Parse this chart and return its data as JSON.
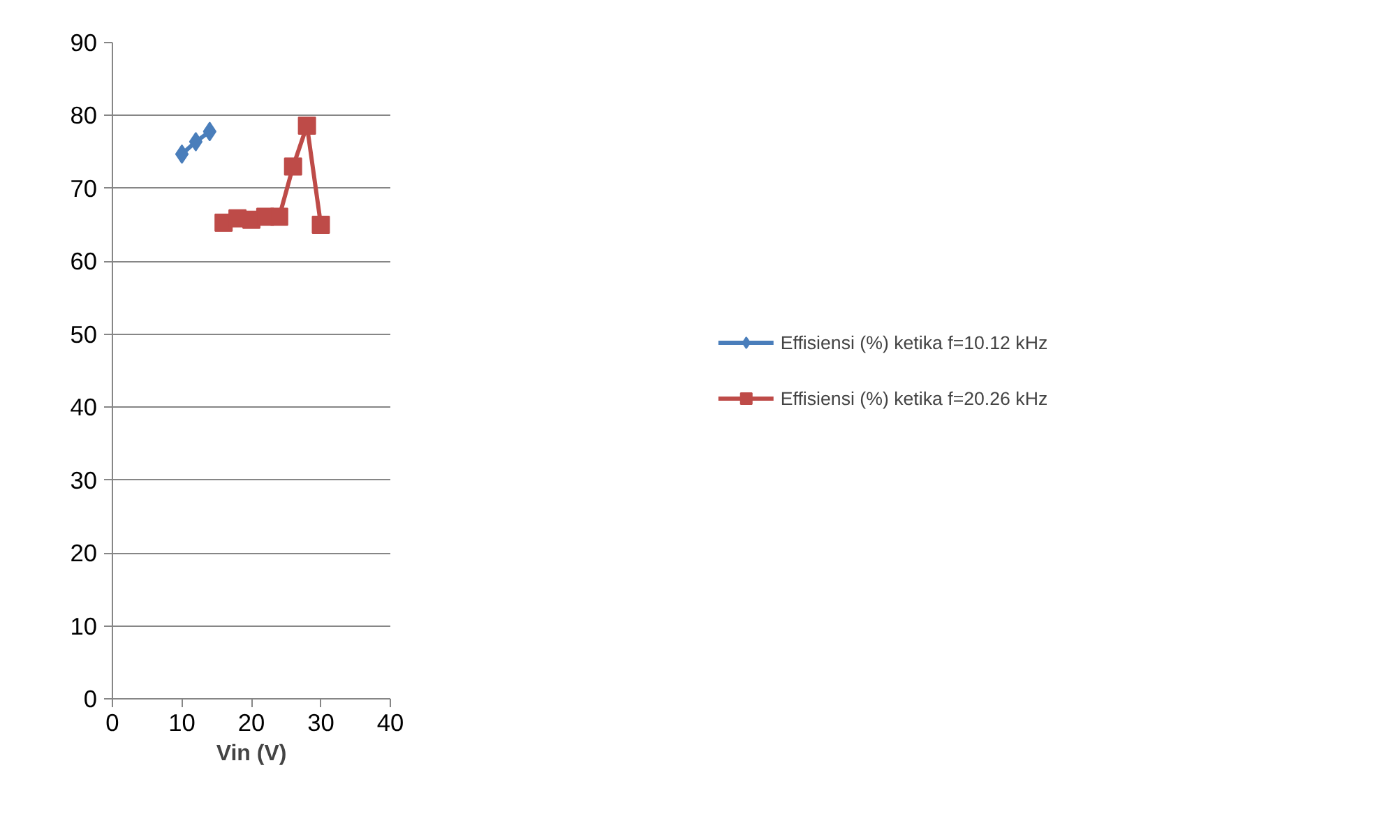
{
  "chart_data": {
    "type": "line",
    "xlabel": "Vin (V)",
    "series": [
      {
        "name": "Effisiensi (%) ketika f=10.12 kHz",
        "color": "#4a7ebb",
        "marker": "diamond",
        "x": [
          10,
          12,
          14
        ],
        "values": [
          74.7,
          76.4,
          77.8
        ]
      },
      {
        "name": "Effisiensi (%) ketika f=20.26 kHz",
        "color": "#be4b48",
        "marker": "square",
        "x": [
          16,
          18,
          20,
          22,
          24,
          26,
          28,
          30
        ],
        "values": [
          65.3,
          65.9,
          65.7,
          66.1,
          66.1,
          73.0,
          78.6,
          65.0
        ]
      }
    ],
    "xlim": [
      0,
      40
    ],
    "xticks": [
      0,
      10,
      20,
      30,
      40
    ],
    "ylim": [
      0,
      90
    ],
    "yticks": [
      0,
      10,
      20,
      30,
      40,
      50,
      60,
      70,
      80,
      90
    ],
    "grid": "y",
    "legend": "right",
    "line_style": "solid"
  }
}
